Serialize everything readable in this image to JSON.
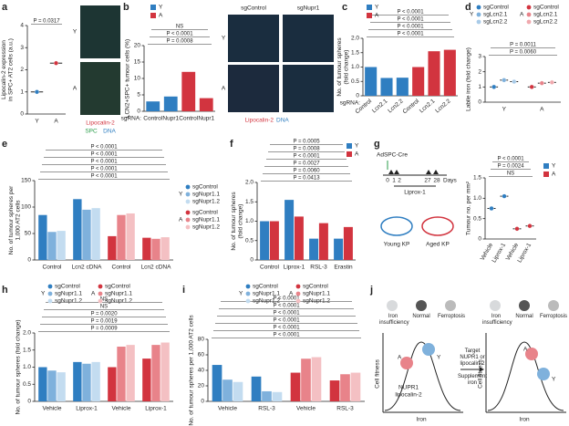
{
  "chart_data": [
    {
      "panel": "a",
      "type": "dot",
      "ylabel": [
        "Lipocalin-2 expression",
        "in SPC+ AT2 cells (a.u.)"
      ],
      "categories": [
        "Y",
        "A"
      ],
      "values": [
        1.0,
        2.3
      ],
      "colors": [
        "#2f7ec1",
        "#d2343f"
      ],
      "ylim": [
        0,
        4
      ],
      "yticks": [
        0,
        1,
        2,
        3,
        4
      ],
      "annotations": [
        "P = 0.0317"
      ]
    },
    {
      "panel": "b",
      "type": "bar",
      "ylabel": [
        "LCN2+SPC+ tumour cells (%)"
      ],
      "x_prefix": "sgRNA:",
      "categories": [
        "Control",
        "Nupr1",
        "Control",
        "Nupr1"
      ],
      "series": [
        {
          "name": "Y",
          "color": "#2f7ec1",
          "values": [
            3,
            4.5,
            null,
            null
          ]
        },
        {
          "name": "A",
          "color": "#d2343f",
          "values": [
            null,
            null,
            12,
            4
          ]
        }
      ],
      "ylim": [
        0,
        20
      ],
      "yticks": [
        0,
        5,
        10,
        15,
        20
      ],
      "annotations": [
        "P = 0.0008",
        "P < 0.0001",
        "NS"
      ]
    },
    {
      "panel": "c",
      "type": "bar",
      "ylabel": [
        "No. of tumour spheres",
        "(fold change)"
      ],
      "x_prefix": "sgRNA:",
      "categories": [
        "Control",
        "Lcn2.1",
        "Lcn2.2",
        "Control",
        "Lcn2.1",
        "Lcn2.2"
      ],
      "series": [
        {
          "name": "Y",
          "color": "#2f7ec1",
          "values": [
            1.0,
            0.62,
            0.63,
            null,
            null,
            null
          ]
        },
        {
          "name": "A",
          "color": "#d2343f",
          "values": [
            null,
            null,
            null,
            1.0,
            1.55,
            1.6
          ]
        }
      ],
      "ylim": [
        0,
        2
      ],
      "yticks": [
        0,
        0.5,
        {
          "value": 1,
          "label": "1.0"
        },
        1.5,
        {
          "value": 2,
          "label": "2.0"
        }
      ],
      "annotations": [
        "P < 0.0001",
        "P < 0.0001",
        "P < 0.0001",
        "P < 0.0001"
      ]
    },
    {
      "panel": "d",
      "type": "dot",
      "ylabel": [
        "Labile iron (fold change)"
      ],
      "categories": [
        "Y",
        "A"
      ],
      "series": [
        {
          "name": "sgControl",
          "group": "Y",
          "color": "#2f7ec1",
          "values": [
            1.0,
            null
          ]
        },
        {
          "name": "sgLcn2.1",
          "group": "Y",
          "color": "#7fb1dc",
          "values": [
            1.45,
            null
          ]
        },
        {
          "name": "sgLcn2.2",
          "group": "Y",
          "color": "#a9cbe8",
          "values": [
            1.35,
            null
          ]
        },
        {
          "name": "sgControl",
          "group": "A",
          "color": "#d2343f",
          "values": [
            null,
            1.0
          ]
        },
        {
          "name": "sgLcn2.1",
          "group": "A",
          "color": "#e8838a",
          "values": [
            null,
            1.25
          ]
        },
        {
          "name": "sgLcn2.2",
          "group": "A",
          "color": "#f0a9ae",
          "values": [
            null,
            1.3
          ]
        }
      ],
      "ylim": [
        0,
        3
      ],
      "yticks": [
        0,
        1,
        2,
        3
      ],
      "annotations": [
        "P = 0.0060",
        "P = 0.0011"
      ]
    },
    {
      "panel": "e",
      "type": "bar",
      "ylabel": [
        "No. of tumour spheres per",
        "1,000 AT2 cells"
      ],
      "categories": [
        "Control",
        "Lcn2 cDNA",
        "Control",
        "Lcn2 cDNA"
      ],
      "series": [
        {
          "name": "sgControl",
          "group": "Y",
          "color": "#2f7ec1",
          "values": [
            85,
            115,
            null,
            null
          ]
        },
        {
          "name": "sgNupr1.1",
          "group": "Y",
          "color": "#7fb1dc",
          "values": [
            53,
            95,
            null,
            null
          ]
        },
        {
          "name": "sgNupr1.2",
          "group": "Y",
          "color": "#c3dcf0",
          "values": [
            55,
            98,
            null,
            null
          ]
        },
        {
          "name": "sgControl",
          "group": "A",
          "color": "#d2343f",
          "values": [
            null,
            null,
            45,
            42
          ]
        },
        {
          "name": "sgNupr1.1",
          "group": "A",
          "color": "#e8838a",
          "values": [
            null,
            null,
            85,
            40
          ]
        },
        {
          "name": "sgNupr1.2",
          "group": "A",
          "color": "#f4c0c3",
          "values": [
            null,
            null,
            88,
            43
          ]
        }
      ],
      "ylim": [
        0,
        150
      ],
      "yticks": [
        0,
        50,
        100,
        150
      ],
      "annotations": [
        "P < 0.0001",
        "P < 0.0001",
        "P < 0.0001",
        "P < 0.0001",
        "P < 0.0001"
      ]
    },
    {
      "panel": "f",
      "type": "bar",
      "ylabel": [
        "No. of tumour spheres",
        "(fold change)"
      ],
      "categories": [
        "Control",
        "Liprox-1",
        "RSL-3",
        "Erastin"
      ],
      "series": [
        {
          "name": "Y",
          "color": "#2f7ec1",
          "values": [
            1.0,
            1.55,
            0.55,
            0.55
          ]
        },
        {
          "name": "A",
          "color": "#d2343f",
          "values": [
            1.0,
            1.12,
            0.95,
            0.85
          ]
        }
      ],
      "ylim": [
        0,
        2
      ],
      "yticks": [
        0,
        0.5,
        {
          "value": 1,
          "label": "1.0"
        },
        1.5,
        {
          "value": 2,
          "label": "2.0"
        }
      ],
      "annotations": [
        "P = 0.0413",
        "P = 0.0060",
        "P = 0.0027",
        "P < 0.0001",
        "P = 0.0008",
        "P = 0.0005"
      ]
    },
    {
      "type": "dot",
      "ylabel": [
        "Tumour no. per mm²"
      ],
      "categories": [
        "Vehicle",
        "Liprox-1",
        "Vehicle",
        "Liprox-1"
      ],
      "series": [
        {
          "name": "Y",
          "color": "#2f7ec1",
          "values": [
            0.75,
            1.05,
            null,
            null
          ]
        },
        {
          "name": "A",
          "color": "#d2343f",
          "values": [
            null,
            null,
            0.25,
            0.32
          ]
        }
      ],
      "ylim": [
        0,
        1.5
      ],
      "yticks": [
        0,
        0.5,
        {
          "value": 1,
          "label": "1.0"
        },
        1.5
      ],
      "annotations": [
        "NS",
        "P = 0.0024",
        "P < 0.0001"
      ]
    },
    {
      "panel": "h",
      "type": "bar",
      "ylabel": [
        "No. of tumour spheres (fold change)"
      ],
      "categories": [
        "Vehicle",
        "Liprox-1",
        "Vehicle",
        "Liprox-1"
      ],
      "series": [
        {
          "name": "sgControl",
          "group": "Y",
          "color": "#2f7ec1",
          "values": [
            1.0,
            1.15,
            null,
            null
          ]
        },
        {
          "name": "sgNupr1.1",
          "group": "Y",
          "color": "#7fb1dc",
          "values": [
            0.9,
            1.1,
            null,
            null
          ]
        },
        {
          "name": "sgNupr1.2",
          "group": "Y",
          "color": "#c3dcf0",
          "values": [
            0.85,
            1.15,
            null,
            null
          ]
        },
        {
          "name": "sgControl",
          "group": "A",
          "color": "#d2343f",
          "values": [
            null,
            null,
            1.0,
            1.25
          ]
        },
        {
          "name": "sgNupr1.1",
          "group": "A",
          "color": "#e8838a",
          "values": [
            null,
            null,
            1.6,
            1.65
          ]
        },
        {
          "name": "sgNupr1.2",
          "group": "A",
          "color": "#f4c0c3",
          "values": [
            null,
            null,
            1.65,
            1.72
          ]
        }
      ],
      "ylim": [
        0,
        2
      ],
      "yticks": [
        0,
        0.5,
        {
          "value": 1,
          "label": "1.0"
        },
        1.5,
        {
          "value": 2,
          "label": "2.0"
        }
      ],
      "annotations": [
        "P = 0.0009",
        "P = 0.0019",
        "P = 0.0020",
        "NS",
        "NS"
      ]
    },
    {
      "panel": "i",
      "type": "bar",
      "ylabel": [
        "No. of tumour spheres per 1,000 AT2 cells"
      ],
      "categories": [
        "Vehicle",
        "RSL-3",
        "Vehicle",
        "RSL-3"
      ],
      "series": [
        {
          "name": "sgControl",
          "group": "Y",
          "color": "#2f7ec1",
          "values": [
            47,
            32,
            null,
            null
          ]
        },
        {
          "name": "sgNupr1.1",
          "group": "Y",
          "color": "#7fb1dc",
          "values": [
            28,
            13,
            null,
            null
          ]
        },
        {
          "name": "sgNupr1.2",
          "group": "Y",
          "color": "#c3dcf0",
          "values": [
            25,
            12,
            null,
            null
          ]
        },
        {
          "name": "sgControl",
          "group": "A",
          "color": "#d2343f",
          "values": [
            null,
            null,
            37,
            27
          ]
        },
        {
          "name": "sgNupr1.1",
          "group": "A",
          "color": "#e8838a",
          "values": [
            null,
            null,
            55,
            35
          ]
        },
        {
          "name": "sgNupr1.2",
          "group": "A",
          "color": "#f4c0c3",
          "values": [
            null,
            null,
            57,
            37
          ]
        }
      ],
      "ylim": [
        0,
        80
      ],
      "yticks": [
        0,
        20,
        40,
        60,
        80
      ],
      "annotations": [
        "P < 0.0001",
        "P < 0.0001",
        "P < 0.0001",
        "P < 0.0001",
        "P < 0.0001",
        "P < 0.0001"
      ]
    }
  ],
  "figure": {
    "a_image": {
      "rows": [
        "Y",
        "A"
      ],
      "stain": [
        "Lipocalin-2",
        "SPC",
        "DNA"
      ]
    },
    "b_image": {
      "columns": [
        "sgControl",
        "sgNupr1"
      ],
      "rows": [
        "Y",
        "A"
      ],
      "stain": [
        "Lipocalin-2",
        "DNA"
      ]
    },
    "g_scheme": {
      "panel": "g",
      "construct": "AdSPC-Cre",
      "days": [
        "0",
        "1",
        "2",
        "27",
        "28"
      ],
      "unit": "Days",
      "drug": "Liprox-1",
      "mice": [
        "Young KP",
        "Aged KP"
      ]
    },
    "j_scheme": {
      "panel": "j",
      "states": [
        "Iron insufficiency",
        "Normal",
        "Ferroptosis"
      ],
      "ylabel": "Cell fitness",
      "xlabel": "Iron",
      "groups": [
        "A",
        "Y"
      ],
      "factors": [
        "NUPR1",
        "lipocalin-2"
      ],
      "interventions": [
        "Target NUPR1 or lipocalin-2",
        "Supplement iron"
      ]
    }
  }
}
